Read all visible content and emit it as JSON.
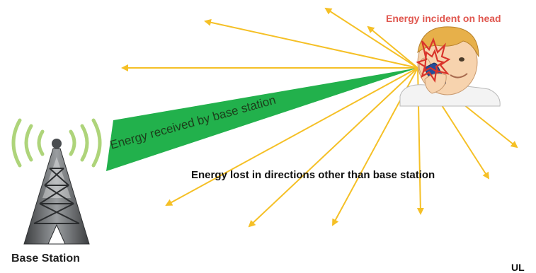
{
  "labels": {
    "energy_incident": "Energy incident on head",
    "energy_received": "Energy received by base station",
    "energy_lost": "Energy lost in directions other than base station",
    "base_station": "Base Station",
    "corner_mark": "UL"
  },
  "colors": {
    "ray": "#f5c026",
    "beam": "#22b14c",
    "incident": "#d9342b",
    "incident_label": "#e0574f",
    "tower": "#5f6265",
    "signal_waves": "#a6d06c"
  },
  "icons": {
    "tower": "tower-icon",
    "person": "person-icon",
    "waves": "signal-waves-icon"
  }
}
